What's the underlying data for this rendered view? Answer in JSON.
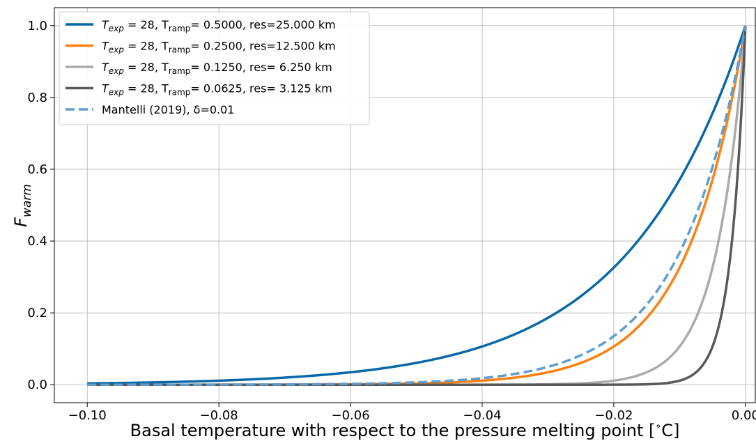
{
  "chart_data": {
    "type": "line",
    "xlabel": "Basal temperature with respect to the pressure melting point [$^\\circ$C]",
    "xlabel_parts": [
      "Basal temperature with respect to the pressure melting point [",
      "C]"
    ],
    "ylabel": "$F_{warm}$",
    "ylabel_parts": [
      "F",
      "warm"
    ],
    "xlim": [
      -0.105,
      0.0015
    ],
    "ylim": [
      -0.05,
      1.05
    ],
    "x_ticks": [
      -0.1,
      -0.08,
      -0.06,
      -0.04,
      -0.02,
      0.0
    ],
    "x_tick_labels": [
      "−0.10",
      "−0.08",
      "−0.06",
      "−0.04",
      "−0.02",
      "0.00"
    ],
    "y_ticks": [
      0.0,
      0.2,
      0.4,
      0.6,
      0.8,
      1.0
    ],
    "y_tick_labels": [
      "0.0",
      "0.2",
      "0.4",
      "0.6",
      "0.8",
      "1.0"
    ],
    "grid": true,
    "legend_position": "top-left",
    "x_domain": [
      -0.1,
      0.0
    ],
    "series": [
      {
        "name": "T_exp = 28, T_ramp= 0.5000, res=25.000 km",
        "legend_parts": {
          "sub1": "exp",
          "mid": " = 28, T",
          "sub2": "ramp",
          "tail": "= 0.5000, res=25.000 km"
        },
        "color": "#0868a8",
        "dash": "solid",
        "decay_rate": 56,
        "points": [
          [
            -0.1,
            0.004
          ],
          [
            -0.08,
            0.011
          ],
          [
            -0.06,
            0.035
          ],
          [
            -0.04,
            0.106
          ],
          [
            -0.02,
            0.326
          ],
          [
            0.0,
            1.0
          ]
        ]
      },
      {
        "name": "T_exp = 28, T_ramp= 0.2500, res=12.500 km",
        "legend_parts": {
          "sub1": "exp",
          "mid": " = 28, T",
          "sub2": "ramp",
          "tail": "= 0.2500, res=12.500 km"
        },
        "color": "#ff800e",
        "dash": "solid",
        "decay_rate": 112,
        "points": [
          [
            -0.1,
            0.0
          ],
          [
            -0.06,
            0.001
          ],
          [
            -0.04,
            0.011
          ],
          [
            -0.02,
            0.106
          ],
          [
            0.0,
            1.0
          ]
        ]
      },
      {
        "name": "T_exp = 28, T_ramp= 0.1250, res= 6.250 km",
        "legend_parts": {
          "sub1": "exp",
          "mid": " = 28, T",
          "sub2": "ramp",
          "tail": "= 0.1250, res= 6.250 km"
        },
        "color": "#ababab",
        "dash": "solid",
        "decay_rate": 224,
        "points": [
          [
            -0.1,
            0.0
          ],
          [
            -0.04,
            0.0
          ],
          [
            -0.02,
            0.011
          ],
          [
            -0.01,
            0.106
          ],
          [
            0.0,
            1.0
          ]
        ]
      },
      {
        "name": "T_exp = 28, T_ramp= 0.0625, res= 3.125 km",
        "legend_parts": {
          "sub1": "exp",
          "mid": " = 28, T",
          "sub2": "ramp",
          "tail": "= 0.0625, res= 3.125 km"
        },
        "color": "#595959",
        "dash": "solid",
        "decay_rate": 448,
        "points": [
          [
            -0.1,
            0.0
          ],
          [
            -0.02,
            0.0
          ],
          [
            -0.01,
            0.011
          ],
          [
            -0.005,
            0.106
          ],
          [
            0.0,
            1.0
          ]
        ]
      },
      {
        "name": "Mantelli (2019), δ=0.01",
        "legend_parts": {
          "text": "Mantelli (2019), δ=0.01"
        },
        "color": "#5f9ed1",
        "dash": "dashed",
        "decay_rate": 100,
        "points": [
          [
            -0.1,
            0.0
          ],
          [
            -0.06,
            0.002
          ],
          [
            -0.04,
            0.018
          ],
          [
            -0.02,
            0.135
          ],
          [
            0.0,
            1.0
          ]
        ]
      }
    ]
  }
}
